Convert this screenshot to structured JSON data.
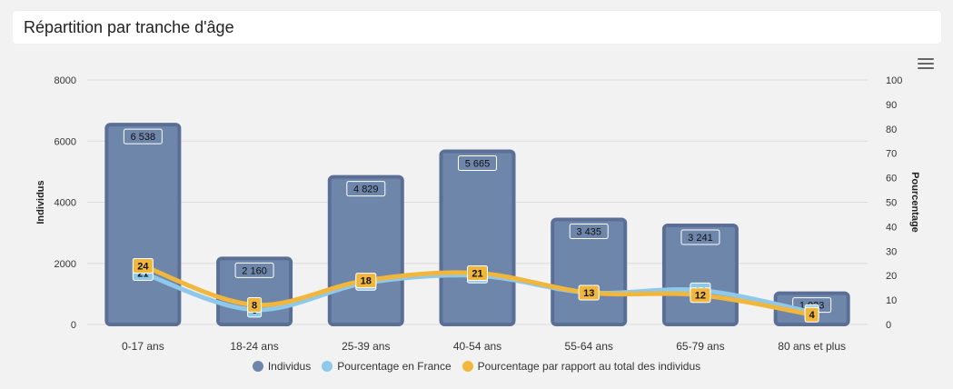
{
  "header": {
    "title": "Répartition par tranche d'âge"
  },
  "menu": {
    "icon": "hamburger-menu-icon"
  },
  "colors": {
    "bar": "#6f86ab",
    "bar_border": "#5b6f96",
    "line_france": "#8ec8ea",
    "line_total": "#f1b73c"
  },
  "chart_data": {
    "type": "bar",
    "categories": [
      "0-17 ans",
      "18-24 ans",
      "25-39 ans",
      "40-54 ans",
      "55-64 ans",
      "65-79 ans",
      "80 ans et plus"
    ],
    "y_left": {
      "label": "Individus",
      "min": 0,
      "max": 8000,
      "ticks": [
        0,
        2000,
        4000,
        6000,
        8000
      ]
    },
    "y_right": {
      "label": "Pourcentage",
      "min": 0,
      "max": 100,
      "ticks": [
        0,
        10,
        20,
        30,
        40,
        50,
        60,
        70,
        80,
        90,
        100
      ]
    },
    "series": [
      {
        "name": "Individus",
        "type": "bar",
        "axis": "left",
        "values": [
          6538,
          2160,
          4829,
          5665,
          3435,
          3241,
          1023
        ],
        "labels": [
          "6 538",
          "2 160",
          "4 829",
          "5 665",
          "3 435",
          "3 241",
          "1 023"
        ]
      },
      {
        "name": "Pourcentage en France",
        "type": "line",
        "axis": "right",
        "values": [
          21,
          6,
          17,
          20,
          13,
          14,
          5
        ],
        "labels": [
          "21",
          "6",
          "17",
          "20",
          "13",
          "14",
          "5"
        ]
      },
      {
        "name": "Pourcentage par rapport au total des individus",
        "type": "line",
        "axis": "right",
        "values": [
          24,
          8,
          18,
          21,
          13,
          12,
          4
        ],
        "labels": [
          "24",
          "8",
          "18",
          "21",
          "13",
          "12",
          "4"
        ]
      }
    ],
    "grid": true,
    "legend": "bottom"
  }
}
